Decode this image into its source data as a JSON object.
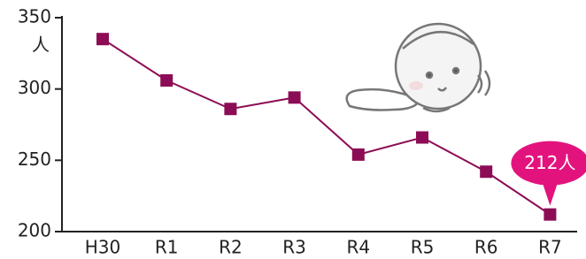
{
  "chart_data": {
    "type": "line",
    "y_unit": "人",
    "categories": [
      "H30",
      "R1",
      "R2",
      "R3",
      "R4",
      "R5",
      "R6",
      "R7"
    ],
    "series": [
      {
        "color": "#8c0d55",
        "values": [
          335,
          306,
          286,
          294,
          254,
          266,
          242,
          212
        ],
        "value_labels": [
          null,
          null,
          null,
          null,
          null,
          null,
          null,
          "212人"
        ]
      }
    ],
    "label_color": "#e3137e",
    "ylim": [
      200,
      350
    ],
    "yticks": [
      200,
      250,
      300,
      350
    ]
  }
}
